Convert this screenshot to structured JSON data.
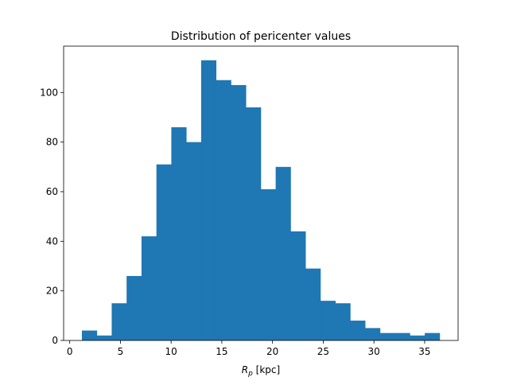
{
  "chart_data": {
    "type": "bar",
    "title": "Distribution of pericenter values",
    "xlabel_main": "R",
    "xlabel_sub": "p",
    "xlabel_unit": " [kpc]",
    "ylabel": "",
    "xlim": [
      -0.6,
      38.3
    ],
    "ylim": [
      0,
      118.7
    ],
    "grid": false,
    "bar_color": "#1f77b4",
    "bin_edges": [
      1.2,
      2.67,
      4.14,
      5.61,
      7.08,
      8.55,
      10.02,
      11.49,
      12.96,
      14.43,
      15.9,
      17.37,
      18.84,
      20.31,
      21.78,
      23.25,
      24.72,
      26.19,
      27.66,
      29.13,
      30.6,
      32.07,
      33.54,
      35.01,
      36.48
    ],
    "values": [
      4,
      2,
      15,
      26,
      42,
      71,
      86,
      80,
      113,
      105,
      103,
      94,
      61,
      70,
      44,
      29,
      16,
      15,
      8,
      5,
      3,
      3,
      2,
      3
    ],
    "xticks": [
      0,
      5,
      10,
      15,
      20,
      25,
      30,
      35
    ],
    "xtick_labels": [
      "0",
      "5",
      "10",
      "15",
      "20",
      "25",
      "30",
      "35"
    ],
    "yticks": [
      0,
      20,
      40,
      60,
      80,
      100
    ],
    "ytick_labels": [
      "0",
      "20",
      "40",
      "60",
      "80",
      "100"
    ]
  }
}
